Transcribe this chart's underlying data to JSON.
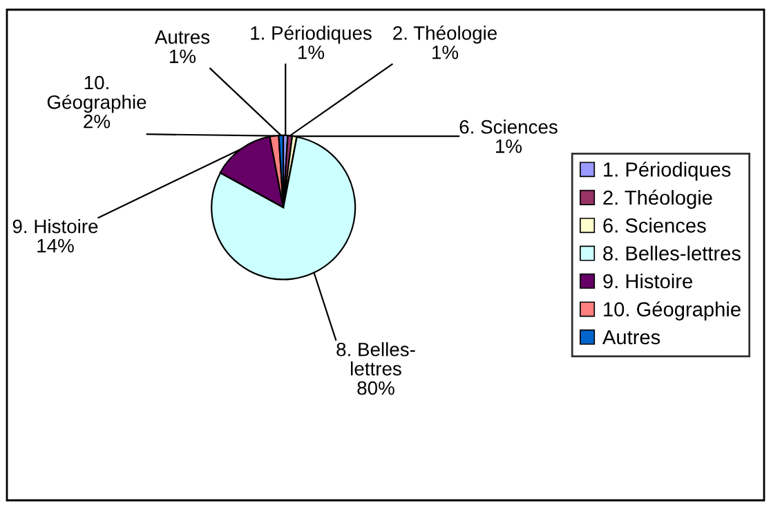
{
  "chart_data": {
    "type": "pie",
    "categories": [
      "1. Périodiques",
      "2. Théologie",
      "6. Sciences",
      "8. Belles-lettres",
      "9. Histoire",
      "10. Géographie",
      "Autres"
    ],
    "values": [
      1,
      1,
      1,
      80,
      14,
      2,
      1
    ],
    "value_labels": [
      "1%",
      "1%",
      "1%",
      "80%",
      "14%",
      "2%",
      "1%"
    ],
    "colors": [
      "#9999ff",
      "#993366",
      "#ffffcc",
      "#ccffff",
      "#660066",
      "#ff8080",
      "#0066cc"
    ],
    "legend": "right"
  }
}
